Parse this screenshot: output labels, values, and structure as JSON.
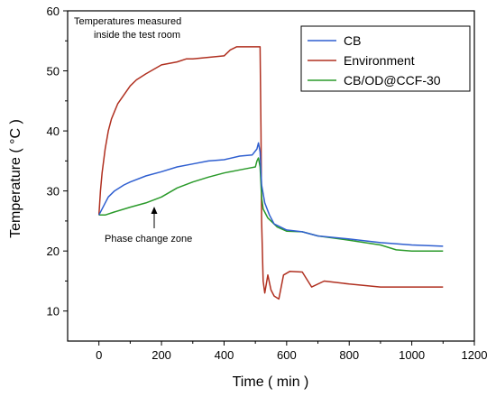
{
  "chart_data": {
    "type": "line",
    "xlabel": "Time ( min )",
    "ylabel": "Temperature ( °C )",
    "xlim": [
      -100,
      1200
    ],
    "ylim": [
      5,
      60
    ],
    "xticks": [
      0,
      200,
      400,
      600,
      800,
      1000,
      1200
    ],
    "yticks": [
      10,
      20,
      30,
      40,
      50,
      60
    ],
    "legend_position": "top-right",
    "series": [
      {
        "name": "CB",
        "color": "#2f5fd0",
        "points": [
          [
            0,
            26
          ],
          [
            15,
            27.5
          ],
          [
            30,
            29
          ],
          [
            50,
            30
          ],
          [
            80,
            31
          ],
          [
            100,
            31.5
          ],
          [
            150,
            32.5
          ],
          [
            200,
            33.2
          ],
          [
            250,
            34
          ],
          [
            300,
            34.5
          ],
          [
            350,
            35
          ],
          [
            400,
            35.2
          ],
          [
            450,
            35.8
          ],
          [
            490,
            36
          ],
          [
            505,
            37
          ],
          [
            510,
            38
          ],
          [
            515,
            36.5
          ],
          [
            520,
            31
          ],
          [
            530,
            28
          ],
          [
            545,
            26
          ],
          [
            560,
            24.5
          ],
          [
            600,
            23.5
          ],
          [
            650,
            23.2
          ],
          [
            700,
            22.5
          ],
          [
            800,
            22
          ],
          [
            900,
            21.4
          ],
          [
            1000,
            21
          ],
          [
            1100,
            20.8
          ]
        ]
      },
      {
        "name": "Environment",
        "color": "#b03020",
        "points": [
          [
            0,
            26
          ],
          [
            5,
            30
          ],
          [
            10,
            33
          ],
          [
            20,
            37
          ],
          [
            30,
            40
          ],
          [
            40,
            42
          ],
          [
            60,
            44.5
          ],
          [
            80,
            46
          ],
          [
            100,
            47.5
          ],
          [
            120,
            48.5
          ],
          [
            150,
            49.5
          ],
          [
            200,
            51
          ],
          [
            250,
            51.5
          ],
          [
            280,
            52
          ],
          [
            300,
            52
          ],
          [
            400,
            52.5
          ],
          [
            420,
            53.5
          ],
          [
            440,
            54
          ],
          [
            500,
            54
          ],
          [
            515,
            54
          ],
          [
            518,
            40
          ],
          [
            520,
            25
          ],
          [
            525,
            15
          ],
          [
            530,
            13
          ],
          [
            540,
            16
          ],
          [
            550,
            13.5
          ],
          [
            560,
            12.5
          ],
          [
            575,
            12
          ],
          [
            590,
            16
          ],
          [
            610,
            16.6
          ],
          [
            650,
            16.5
          ],
          [
            680,
            14
          ],
          [
            720,
            15
          ],
          [
            800,
            14.5
          ],
          [
            900,
            14
          ],
          [
            1000,
            14
          ],
          [
            1100,
            14
          ]
        ]
      },
      {
        "name": "CB/OD@CCF-30",
        "color": "#2a9a2a",
        "points": [
          [
            0,
            26
          ],
          [
            20,
            26
          ],
          [
            50,
            26.5
          ],
          [
            100,
            27.3
          ],
          [
            150,
            28
          ],
          [
            200,
            29
          ],
          [
            250,
            30.5
          ],
          [
            300,
            31.5
          ],
          [
            350,
            32.3
          ],
          [
            400,
            33
          ],
          [
            450,
            33.5
          ],
          [
            480,
            33.8
          ],
          [
            500,
            34
          ],
          [
            505,
            35
          ],
          [
            510,
            35.5
          ],
          [
            515,
            34
          ],
          [
            520,
            29
          ],
          [
            525,
            27
          ],
          [
            540,
            25.5
          ],
          [
            570,
            24
          ],
          [
            600,
            23.3
          ],
          [
            650,
            23.2
          ],
          [
            700,
            22.5
          ],
          [
            800,
            21.8
          ],
          [
            900,
            21
          ],
          [
            950,
            20.2
          ],
          [
            1000,
            20
          ],
          [
            1100,
            20
          ]
        ]
      }
    ],
    "annotations": [
      {
        "text_lines": [
          "Temperatures measured",
          "inside the test room"
        ]
      },
      {
        "text": "Phase change zone",
        "arrow_to": [
          180,
          27
        ]
      }
    ]
  }
}
